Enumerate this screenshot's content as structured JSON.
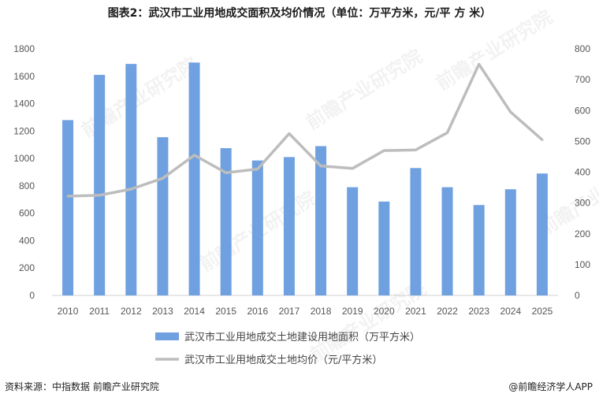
{
  "title": "图表2：武汉市工业用地成交面积及均价情况（单位：万平方米，元/平 方 米）",
  "source": "资料来源：中指数据  前瞻产业研究院",
  "credit": "@前瞻经济学人APP",
  "watermark": "前瞻产业研究院",
  "colors": {
    "bar": "#6fa0e0",
    "line": "#bdbdbd"
  },
  "chart_data": {
    "type": "bar",
    "categories": [
      "2010",
      "2011",
      "2012",
      "2013",
      "2014",
      "2015",
      "2016",
      "2017",
      "2018",
      "2019",
      "2020",
      "2021",
      "2022",
      "2023",
      "2024",
      "2025"
    ],
    "left_axis": {
      "min": 0,
      "max": 1800,
      "ticks": [
        "0",
        "200",
        "400",
        "600",
        "800",
        "1000",
        "1200",
        "1400",
        "1600",
        "1800"
      ]
    },
    "right_axis": {
      "min": 0,
      "max": 800,
      "ticks": [
        "0",
        "100",
        "200",
        "300",
        "400",
        "500",
        "600",
        "700",
        "800"
      ]
    },
    "series": [
      {
        "name": "武汉市工业用地成交土地建设用地面积（万平方米）",
        "type": "bar",
        "axis": "left",
        "values": [
          1280,
          1610,
          1690,
          1155,
          1700,
          1075,
          985,
          1010,
          1090,
          790,
          685,
          930,
          790,
          660,
          775,
          890
        ]
      },
      {
        "name": "武汉市工业用地成交土地均价（元/平方米）",
        "type": "line",
        "axis": "right",
        "values": [
          322,
          325,
          345,
          380,
          455,
          398,
          410,
          525,
          420,
          412,
          470,
          472,
          528,
          750,
          595,
          505
        ]
      }
    ],
    "grid": false,
    "legend": "bottom"
  }
}
